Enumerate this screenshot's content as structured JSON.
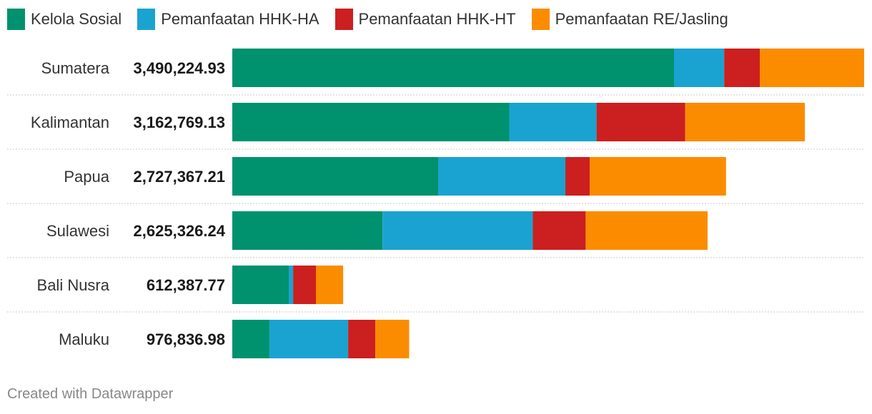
{
  "credit": "Created with Datawrapper",
  "chart_data": {
    "type": "bar",
    "orientation": "horizontal",
    "stacked": true,
    "title": "",
    "xlabel": "",
    "ylabel": "",
    "legend_position": "top-left",
    "grid": false,
    "categories": [
      "Sumatera",
      "Kalimantan",
      "Papua",
      "Sulawesi",
      "Bali Nusra",
      "Maluku"
    ],
    "totals": [
      3490224.93,
      3162769.13,
      2727367.21,
      2625326.24,
      612387.77,
      976836.98
    ],
    "total_labels": [
      "3,490,224.93",
      "3,162,769.13",
      "2,727,367.21",
      "2,625,326.24",
      "612,387.77",
      "976,836.98"
    ],
    "series": [
      {
        "name": "Kelola Sosial",
        "color": "#00916e",
        "values": [
          2440000,
          1530000,
          1137000,
          830000,
          312000,
          205000
        ]
      },
      {
        "name": "Pemanfaatan HHK-HA",
        "color": "#1aa3d0",
        "values": [
          277000,
          482000,
          703000,
          830000,
          24000,
          435000
        ]
      },
      {
        "name": "Pemanfaatan HHK-HT",
        "color": "#cc1f1f",
        "values": [
          197000,
          490000,
          134000,
          292000,
          126000,
          150000
        ]
      },
      {
        "name": "Pemanfaatan RE/Jasling",
        "color": "#fb8c00",
        "values": [
          576224.93,
          660769.13,
          753367.21,
          673326.24,
          150387.77,
          186836.98
        ]
      }
    ]
  }
}
